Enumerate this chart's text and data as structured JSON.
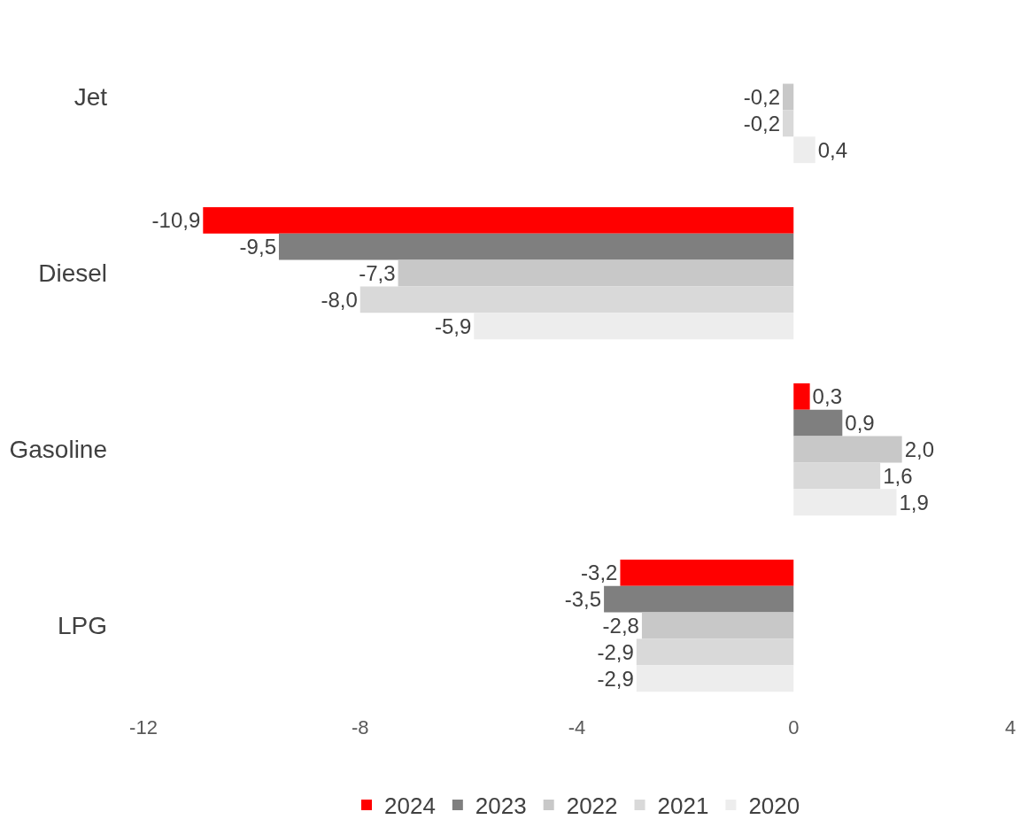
{
  "chart_data": {
    "type": "bar",
    "orientation": "horizontal",
    "categories": [
      "Jet",
      "Diesel",
      "Gasoline",
      "LPG"
    ],
    "series": [
      {
        "name": "2024",
        "color": "#ff0000",
        "values": [
          null,
          -10.9,
          0.3,
          -3.2
        ],
        "value_labels": [
          null,
          "-10,9",
          "0,3",
          "-3,2"
        ]
      },
      {
        "name": "2023",
        "color": "#7f7f7f",
        "values": [
          null,
          -9.5,
          0.9,
          -3.5
        ],
        "value_labels": [
          null,
          "-9,5",
          "0,9",
          "-3,5"
        ]
      },
      {
        "name": "2022",
        "color": "#c8c8c8",
        "values": [
          -0.2,
          -7.3,
          2.0,
          -2.8
        ],
        "value_labels": [
          "-0,2",
          "-7,3",
          "2,0",
          "-2,8"
        ]
      },
      {
        "name": "2021",
        "color": "#d9d9d9",
        "values": [
          -0.2,
          -8.0,
          1.6,
          -2.9
        ],
        "value_labels": [
          "-0,2",
          "-8,0",
          "1,6",
          "-2,9"
        ]
      },
      {
        "name": "2020",
        "color": "#ededed",
        "values": [
          0.4,
          -5.9,
          1.9,
          -2.9
        ],
        "value_labels": [
          "0,4",
          "-5,9",
          "1,9",
          "-2,9"
        ]
      }
    ],
    "xlim": [
      -12,
      4
    ],
    "xticks": [
      -12,
      -8,
      -4,
      0,
      4
    ],
    "legend": "bottom"
  }
}
